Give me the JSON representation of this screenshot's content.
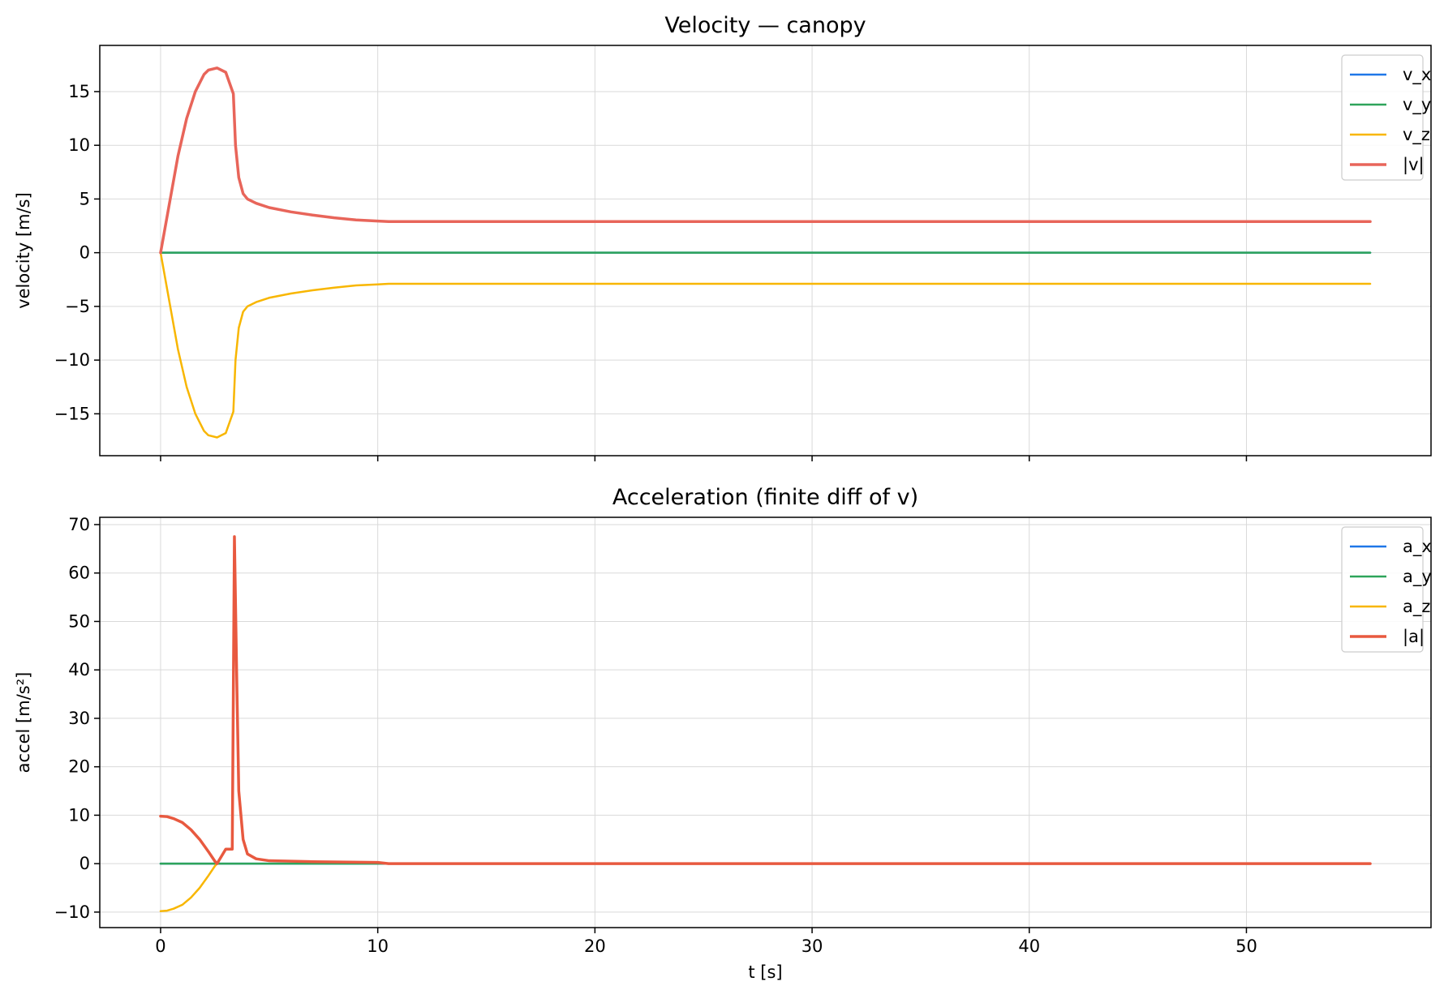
{
  "colors": {
    "x": "#1f77e8",
    "y": "#2ea45a",
    "z": "#f8b600",
    "mag_v": "#e8655a",
    "mag_a": "#e8593f"
  },
  "chart_data": [
    {
      "type": "line",
      "title": "Velocity — canopy",
      "xlabel": "",
      "ylabel": "velocity [m/s]",
      "xlim": [
        -2.8,
        58.5
      ],
      "ylim": [
        -18.9,
        19.3
      ],
      "xticks": [
        0,
        10,
        20,
        30,
        40,
        50
      ],
      "show_xtick_labels": false,
      "yticks": [
        -15,
        -10,
        -5,
        0,
        5,
        10,
        15
      ],
      "ytick_labels": [
        "−15",
        "−10",
        "−5",
        "0",
        "5",
        "10",
        "15"
      ],
      "grid": true,
      "legend_position": "top-right",
      "series": [
        {
          "name": "v_x",
          "color_key": "x",
          "width": 2.5,
          "x": [
            0,
            55.7
          ],
          "y": [
            0,
            0
          ]
        },
        {
          "name": "v_y",
          "color_key": "y",
          "width": 2.5,
          "x": [
            0,
            55.7
          ],
          "y": [
            0,
            0
          ]
        },
        {
          "name": "v_z",
          "color_key": "z",
          "width": 2.5,
          "x": [
            0,
            0.4,
            0.8,
            1.2,
            1.6,
            2.0,
            2.2,
            2.6,
            3.0,
            3.35,
            3.45,
            3.6,
            3.8,
            4.0,
            4.4,
            5.0,
            6.0,
            7.0,
            8.0,
            9.0,
            10.0,
            10.5,
            55.7
          ],
          "y": [
            0,
            -4.5,
            -9.0,
            -12.5,
            -15.0,
            -16.6,
            -17.0,
            -17.2,
            -16.8,
            -14.8,
            -10.0,
            -7.0,
            -5.5,
            -5.0,
            -4.6,
            -4.2,
            -3.8,
            -3.5,
            -3.25,
            -3.05,
            -2.95,
            -2.9,
            -2.9
          ]
        },
        {
          "name": "|v|",
          "color_key": "mag_v",
          "width": 3.5,
          "x": [
            0,
            0.4,
            0.8,
            1.2,
            1.6,
            2.0,
            2.2,
            2.6,
            3.0,
            3.35,
            3.45,
            3.6,
            3.8,
            4.0,
            4.4,
            5.0,
            6.0,
            7.0,
            8.0,
            9.0,
            10.0,
            10.5,
            55.7
          ],
          "y": [
            0,
            4.5,
            9.0,
            12.5,
            15.0,
            16.6,
            17.0,
            17.2,
            16.8,
            14.8,
            10.0,
            7.0,
            5.5,
            5.0,
            4.6,
            4.2,
            3.8,
            3.5,
            3.25,
            3.05,
            2.95,
            2.9,
            2.9
          ]
        }
      ],
      "legend": [
        "v_x",
        "v_y",
        "v_z",
        "|v|"
      ]
    },
    {
      "type": "line",
      "title": "Acceleration (finite diff of v)",
      "xlabel": "t [s]",
      "ylabel": "accel [m/s²]",
      "xlim": [
        -2.8,
        58.5
      ],
      "ylim": [
        -13.2,
        71.5
      ],
      "xticks": [
        0,
        10,
        20,
        30,
        40,
        50
      ],
      "show_xtick_labels": true,
      "yticks": [
        -10,
        0,
        10,
        20,
        30,
        40,
        50,
        60,
        70
      ],
      "ytick_labels": [
        "−10",
        "0",
        "10",
        "20",
        "30",
        "40",
        "50",
        "60",
        "70"
      ],
      "grid": true,
      "legend_position": "top-right",
      "series": [
        {
          "name": "a_x",
          "color_key": "x",
          "width": 2.5,
          "x": [
            0,
            55.7
          ],
          "y": [
            0,
            0
          ]
        },
        {
          "name": "a_y",
          "color_key": "y",
          "width": 2.5,
          "x": [
            0,
            55.7
          ],
          "y": [
            0,
            0
          ]
        },
        {
          "name": "a_z",
          "color_key": "z",
          "width": 2.5,
          "x": [
            0,
            0.3,
            0.6,
            1.0,
            1.4,
            1.8,
            2.2,
            2.5,
            2.6,
            3.0,
            3.3,
            3.4,
            3.5,
            3.6,
            3.8,
            4.0,
            4.4,
            5.0,
            7.0,
            10.0,
            10.5,
            55.7
          ],
          "y": [
            -9.8,
            -9.7,
            -9.3,
            -8.5,
            -7.0,
            -5.0,
            -2.5,
            -0.5,
            0.0,
            3.0,
            3.0,
            67.5,
            40.0,
            15.0,
            5.0,
            2.0,
            1.0,
            0.6,
            0.4,
            0.25,
            0.0,
            0.0
          ]
        },
        {
          "name": "|a|",
          "color_key": "mag_a",
          "width": 3.5,
          "x": [
            0,
            0.3,
            0.6,
            1.0,
            1.4,
            1.8,
            2.2,
            2.5,
            2.6,
            3.0,
            3.3,
            3.4,
            3.5,
            3.6,
            3.8,
            4.0,
            4.4,
            5.0,
            7.0,
            10.0,
            10.5,
            55.7
          ],
          "y": [
            9.8,
            9.7,
            9.3,
            8.5,
            7.0,
            5.0,
            2.5,
            0.5,
            0.0,
            3.0,
            3.0,
            67.5,
            40.0,
            15.0,
            5.0,
            2.0,
            1.0,
            0.6,
            0.4,
            0.25,
            0.0,
            0.0
          ]
        }
      ],
      "legend": [
        "a_x",
        "a_y",
        "a_z",
        "|a|"
      ]
    }
  ]
}
